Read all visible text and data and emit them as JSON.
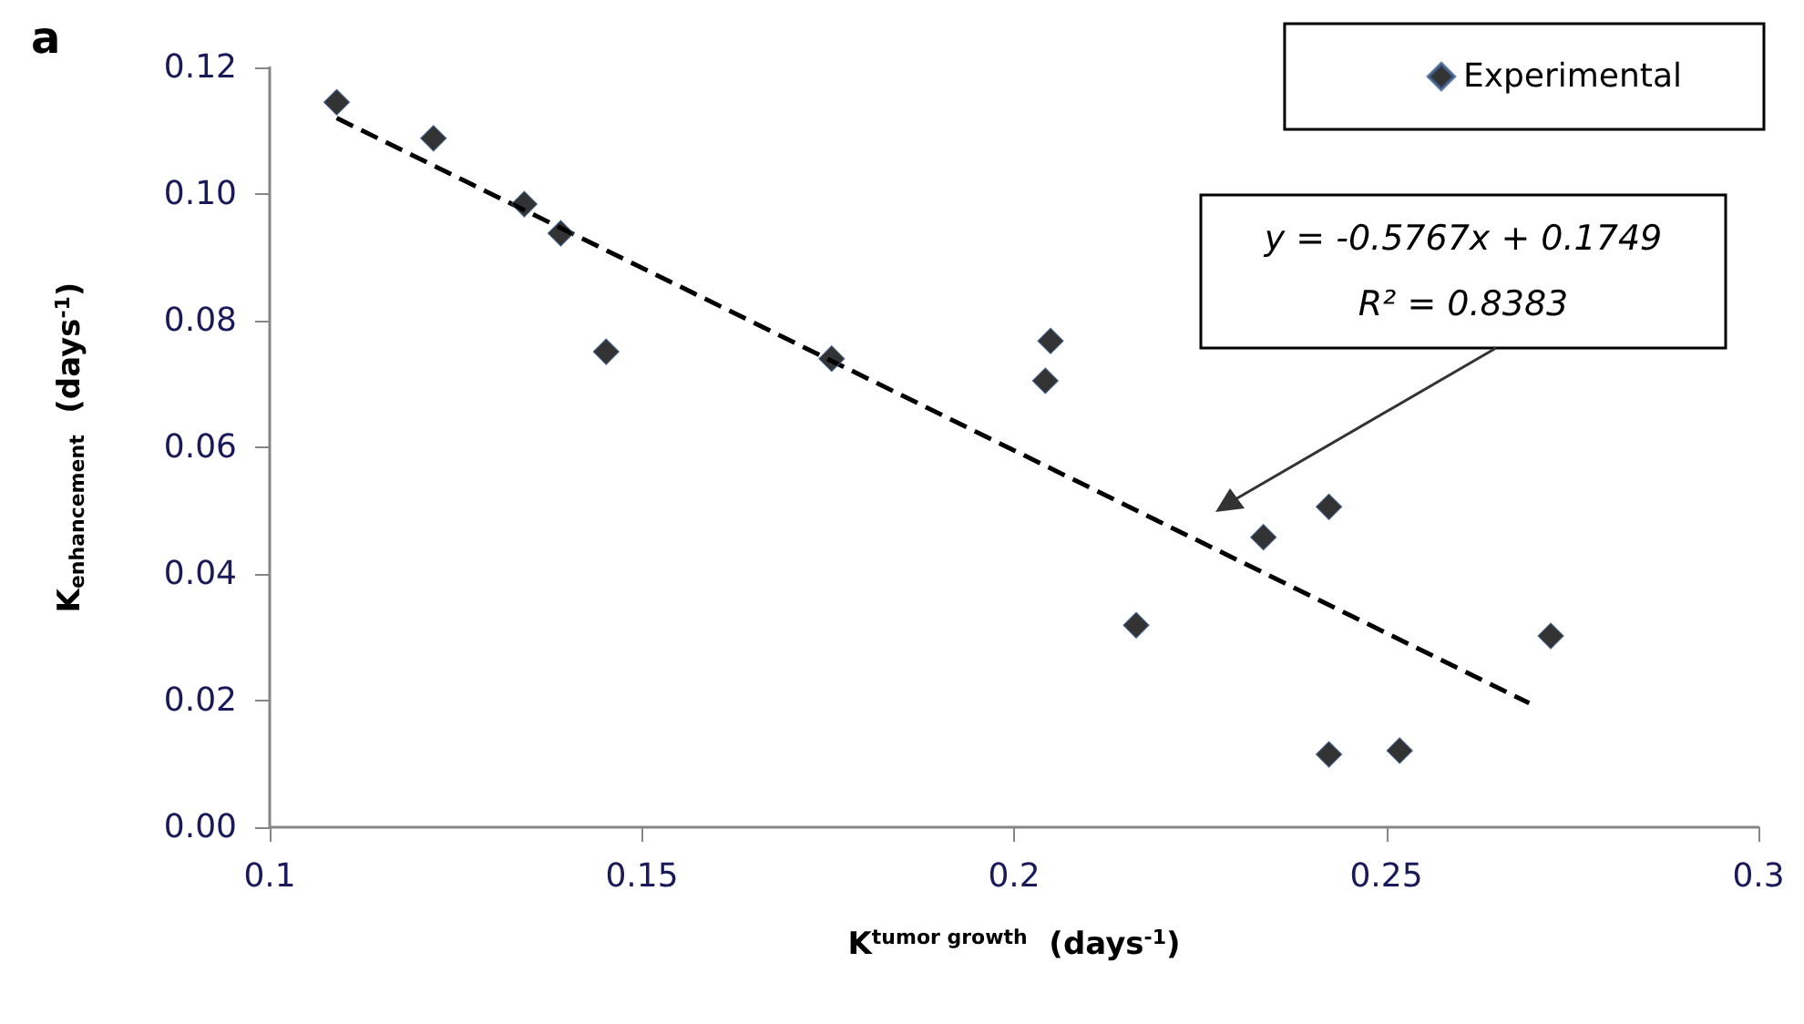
{
  "chart_data": {
    "type": "scatter",
    "title": "a",
    "xlabel": "K$^{tumor growth}$  (days$^{-1}$)",
    "ylabel": "K$_{enhancement}$  (days$^{-1}$)",
    "xlim": [
      0.1,
      0.3
    ],
    "xticks": [
      0.1,
      0.15,
      0.2,
      0.25,
      0.3
    ],
    "ylim": [
      0,
      0.12
    ],
    "yticks": [
      {
        "value": 0,
        "label": "0.00"
      },
      {
        "value": 0.02,
        "label": "0.02"
      },
      {
        "value": 0.04,
        "label": "0.04"
      },
      {
        "value": 0.06,
        "label": "0.06"
      },
      {
        "value": 0.08,
        "label": "0.08"
      },
      {
        "value": 0.1,
        "label": "0.10"
      },
      {
        "value": 0.12,
        "label": "0.12"
      }
    ],
    "grid": false,
    "legend": "top right",
    "marker": "diamond",
    "series": [
      {
        "name": "Experimental",
        "color": "#000000",
        "x": [
          0.109,
          0.122,
          0.1342,
          0.1391,
          0.1452,
          0.1755,
          0.2049,
          0.2042,
          0.2164,
          0.2335,
          0.2423,
          0.2423,
          0.2518,
          0.2721
        ],
        "values": [
          0.1145,
          0.1088,
          0.0984,
          0.0938,
          0.0751,
          0.074,
          0.0768,
          0.0705,
          0.0319,
          0.0458,
          0.0506,
          0.0115,
          0.0121,
          0.0302
        ]
      },
      {
        "type": "line",
        "color": "#000000",
        "line_style": "dashed",
        "marker": "none",
        "x": [
          0.109,
          0.2692
        ],
        "values": [
          0.112,
          0.0196
        ]
      }
    ],
    "annotations": [
      "y = -0.5767x + 0.1749\nR² = 0.8383"
    ]
  }
}
